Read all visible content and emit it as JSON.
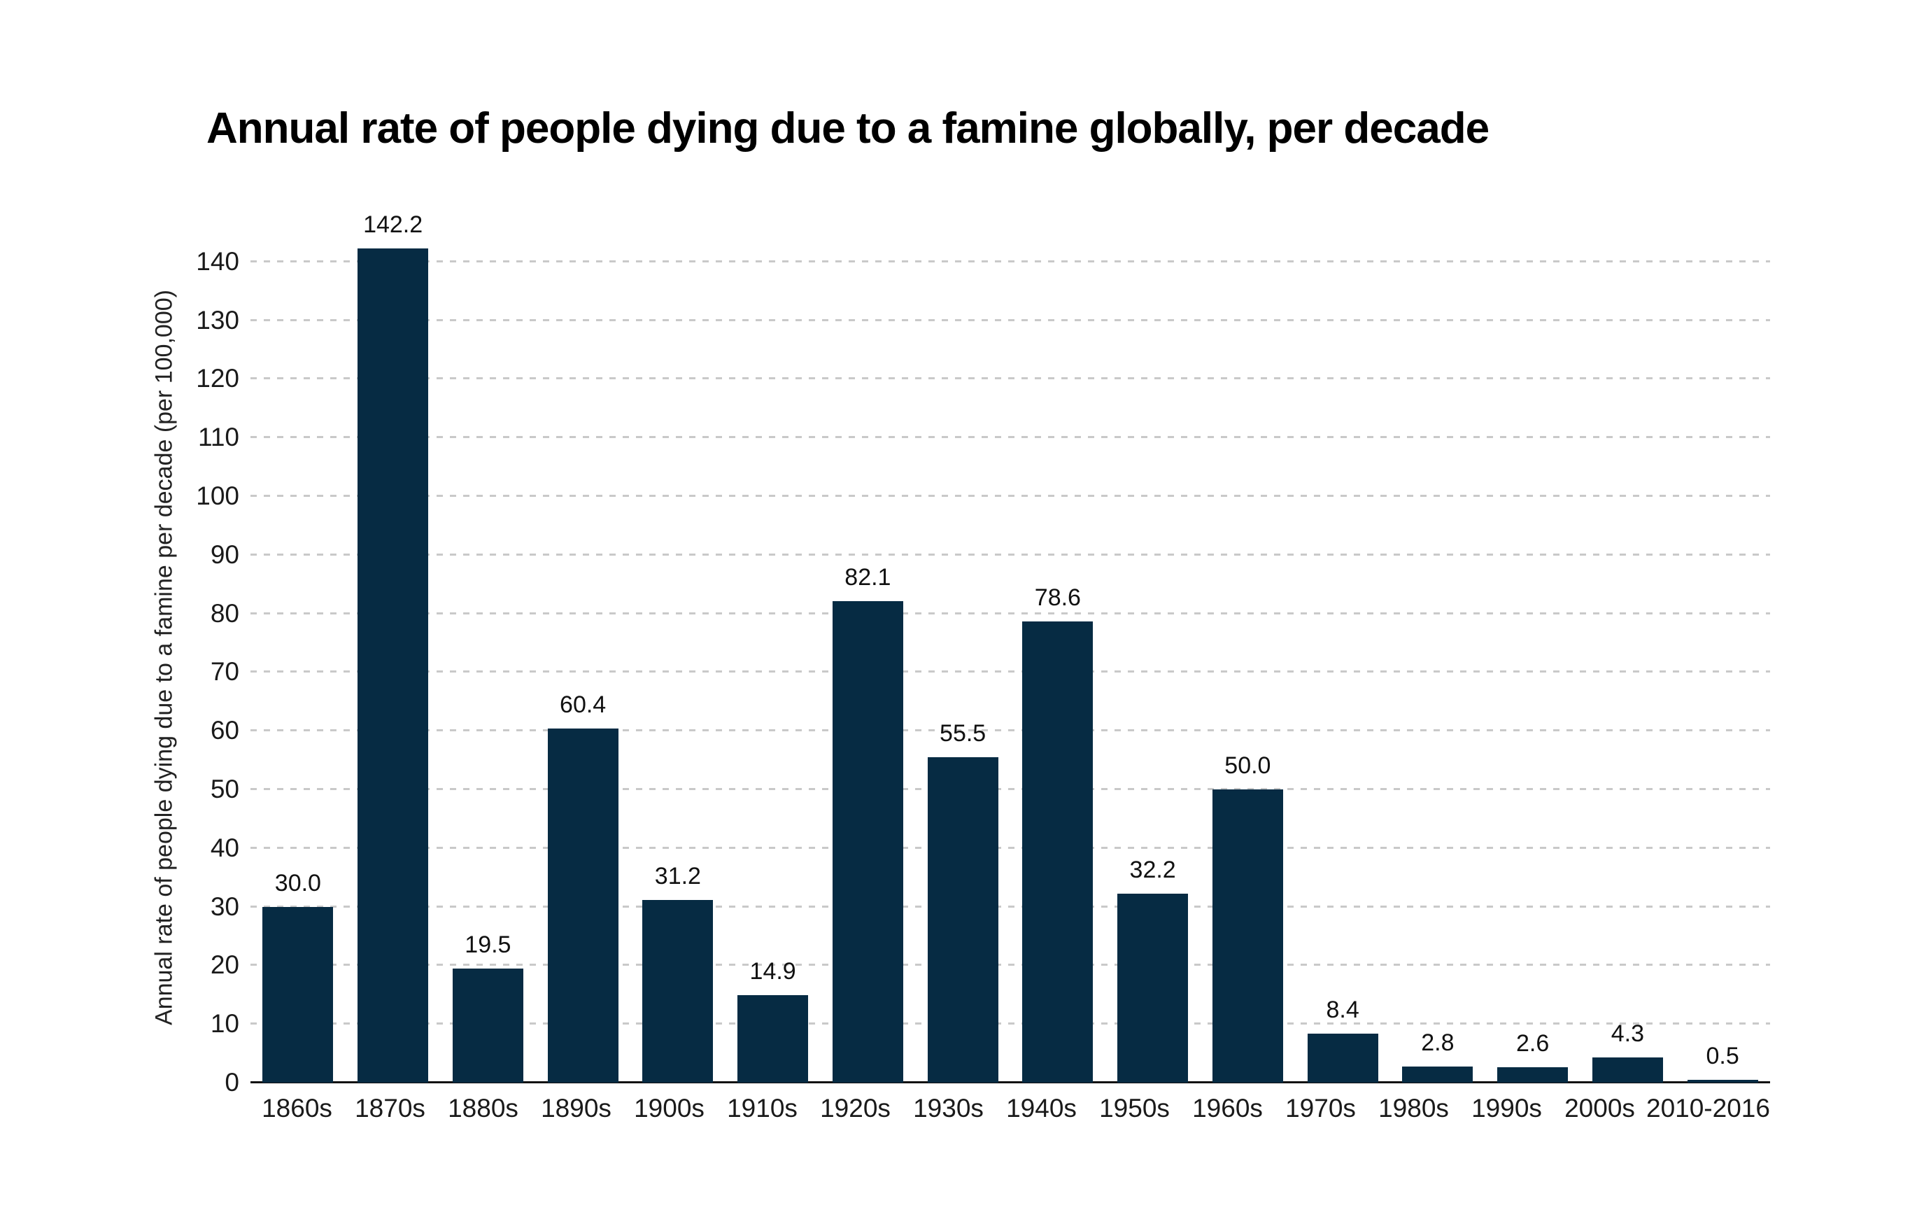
{
  "page": {
    "background_color": "#ffffff"
  },
  "chart_data": {
    "type": "bar",
    "title": "Annual rate of people dying due to a famine globally, per decade",
    "xlabel": "",
    "ylabel": "Annual rate of people dying due to a famine per decade (per 100,000)",
    "categories": [
      "1860s",
      "1870s",
      "1880s",
      "1890s",
      "1900s",
      "1910s",
      "1920s",
      "1930s",
      "1940s",
      "1950s",
      "1960s",
      "1970s",
      "1980s",
      "1990s",
      "2000s",
      "2010-2016"
    ],
    "values": [
      30.0,
      142.2,
      19.5,
      60.4,
      31.2,
      14.9,
      82.1,
      55.5,
      78.6,
      32.2,
      50.0,
      8.4,
      2.8,
      2.6,
      4.3,
      0.5
    ],
    "value_labels": [
      "30.0",
      "142.2",
      "19.5",
      "60.4",
      "31.2",
      "14.9",
      "82.1",
      "55.5",
      "78.6",
      "32.2",
      "50.0",
      "8.4",
      "2.8",
      "2.6",
      "4.3",
      "0.5"
    ],
    "y_ticks": [
      0,
      10,
      20,
      30,
      40,
      50,
      60,
      70,
      80,
      90,
      100,
      110,
      120,
      130,
      140
    ],
    "ylim": [
      0,
      145
    ],
    "grid": "horizontal dashed gridlines, no vertical gridlines",
    "legend_position": "none",
    "colors": {
      "bar": "#062b43",
      "gridline": "#c9c9c9",
      "axis_line": "#111111",
      "text": "#1a1a1a"
    }
  }
}
